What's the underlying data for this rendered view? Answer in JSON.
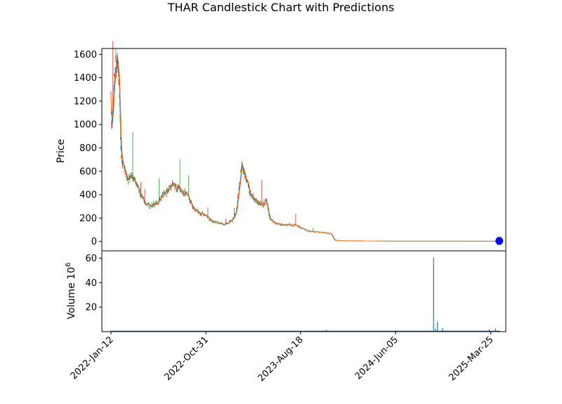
{
  "chart_data": {
    "type": "candlestick",
    "title": "THAR Candlestick Chart with Predictions",
    "colors": {
      "up": "#2ca02c",
      "down": "#d62728",
      "line_a": "#1f77b4",
      "line_b": "#ff7f0e",
      "volume": "#1f77b4",
      "prediction_marker": "#0000ff"
    },
    "price_panel": {
      "ylabel": "Price",
      "ylim": [
        -80,
        1650
      ],
      "yticks": [
        0,
        200,
        400,
        600,
        800,
        1000,
        1200,
        1400,
        1600
      ],
      "ytick_labels": [
        "0",
        "200",
        "400",
        "600",
        "800",
        "1000",
        "1200",
        "1400",
        "1600"
      ],
      "close_path": [
        [
          "2022-01-12",
          1250
        ],
        [
          "2022-01-14",
          1020
        ],
        [
          "2022-01-18",
          1100
        ],
        [
          "2022-01-22",
          1400
        ],
        [
          "2022-01-27",
          1510
        ],
        [
          "2022-02-02",
          1490
        ],
        [
          "2022-02-06",
          1440
        ],
        [
          "2022-02-10",
          900
        ],
        [
          "2022-02-14",
          700
        ],
        [
          "2022-02-20",
          650
        ],
        [
          "2022-02-28",
          560
        ],
        [
          "2022-03-06",
          520
        ],
        [
          "2022-03-15",
          575
        ],
        [
          "2022-03-25",
          540
        ],
        [
          "2022-04-05",
          460
        ],
        [
          "2022-04-15",
          400
        ],
        [
          "2022-04-25",
          330
        ],
        [
          "2022-05-10",
          300
        ],
        [
          "2022-05-25",
          320
        ],
        [
          "2022-06-08",
          340
        ],
        [
          "2022-06-22",
          400
        ],
        [
          "2022-07-06",
          430
        ],
        [
          "2022-07-20",
          480
        ],
        [
          "2022-08-03",
          460
        ],
        [
          "2022-08-17",
          430
        ],
        [
          "2022-09-01",
          420
        ],
        [
          "2022-09-20",
          300
        ],
        [
          "2022-10-10",
          250
        ],
        [
          "2022-10-31",
          220
        ],
        [
          "2022-11-20",
          170
        ],
        [
          "2022-12-10",
          160
        ],
        [
          "2022-12-30",
          145
        ],
        [
          "2023-01-20",
          180
        ],
        [
          "2023-02-01",
          250
        ],
        [
          "2023-02-10",
          450
        ],
        [
          "2023-02-18",
          640
        ],
        [
          "2023-02-25",
          600
        ],
        [
          "2023-03-05",
          520
        ],
        [
          "2023-03-15",
          420
        ],
        [
          "2023-03-28",
          370
        ],
        [
          "2023-04-10",
          330
        ],
        [
          "2023-04-25",
          320
        ],
        [
          "2023-05-05",
          350
        ],
        [
          "2023-05-15",
          190
        ],
        [
          "2023-06-01",
          160
        ],
        [
          "2023-06-20",
          140
        ],
        [
          "2023-07-10",
          145
        ],
        [
          "2023-08-01",
          140
        ],
        [
          "2023-08-18",
          120
        ],
        [
          "2023-09-10",
          90
        ],
        [
          "2023-10-10",
          80
        ],
        [
          "2023-11-05",
          75
        ],
        [
          "2023-11-20",
          65
        ],
        [
          "2023-12-01",
          10
        ],
        [
          "2024-01-01",
          5
        ],
        [
          "2024-06-05",
          3
        ],
        [
          "2025-01-01",
          2
        ],
        [
          "2025-04-22",
          2
        ]
      ],
      "prediction": {
        "date": "2025-04-20",
        "value": 5
      }
    },
    "volume_panel": {
      "ylabel": "Volume  10",
      "ylabel_exponent": "6",
      "ylim": [
        0,
        66
      ],
      "yticks": [
        20,
        40,
        60
      ],
      "ytick_labels": [
        "20",
        "40",
        "60"
      ],
      "spikes": [
        [
          "2022-01-12",
          0.8
        ],
        [
          "2023-11-05",
          1.5
        ],
        [
          "2024-06-05",
          1.2
        ],
        [
          "2024-09-30",
          60.5
        ],
        [
          "2024-10-06",
          2.5
        ],
        [
          "2024-10-12",
          8.0
        ],
        [
          "2024-10-28",
          3.0
        ],
        [
          "2025-03-20",
          1.8
        ],
        [
          "2025-04-08",
          2.5
        ]
      ],
      "baseline": 0.4
    },
    "x_axis": {
      "range": [
        "2021-12-15",
        "2025-05-10"
      ],
      "ticks": [
        "2022-01-12",
        "2022-10-31",
        "2023-08-18",
        "2024-06-05",
        "2025-03-25"
      ],
      "tick_labels": [
        "2022-Jan-12",
        "2022-Oct-31",
        "2023-Aug-18",
        "2024-Jun-05",
        "2025-Mar-25"
      ]
    }
  }
}
